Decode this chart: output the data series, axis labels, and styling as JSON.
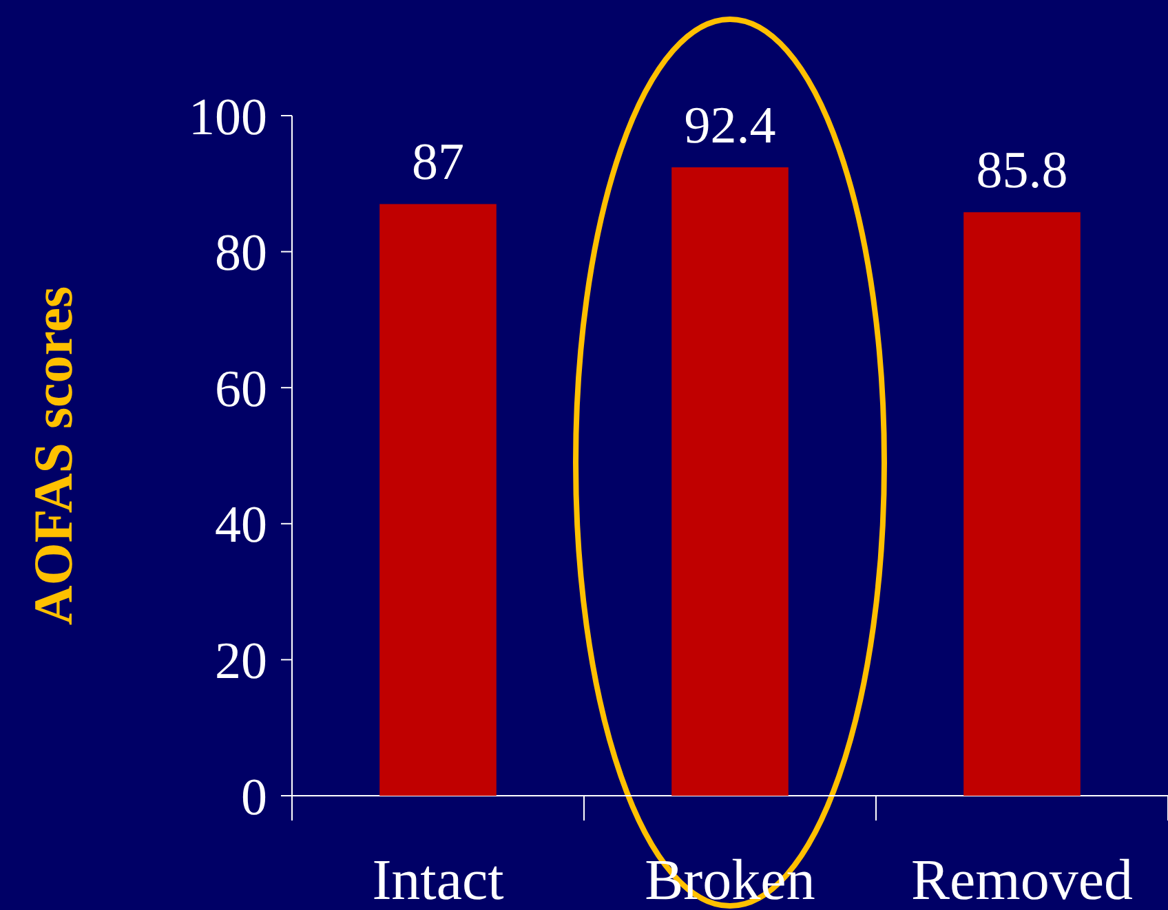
{
  "chart_data": {
    "type": "bar",
    "ylabel": "AOFAS scores",
    "categories": [
      "Intact",
      "Broken",
      "Removed"
    ],
    "values": [
      87,
      92.4,
      85.8
    ],
    "color": "#c00000",
    "ylim": [
      0,
      100
    ],
    "yticks": [
      0,
      20,
      40,
      60,
      80,
      100
    ],
    "data_labels": true
  }
}
